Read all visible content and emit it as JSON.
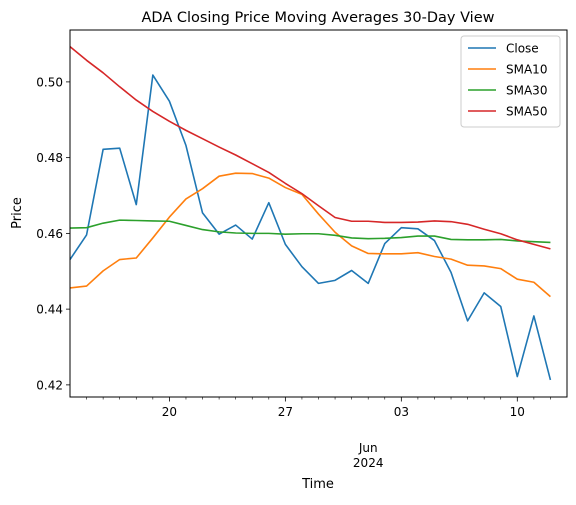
{
  "chart_data": {
    "type": "line",
    "title": "ADA Closing Price Moving Averages 30-Day View",
    "xlabel": "Time",
    "ylabel": "Price",
    "x_start": "2024-05-14",
    "x_end": "2024-06-13",
    "xlim": [
      "2024-05-14",
      "2024-06-13"
    ],
    "ylim": [
      0.4168,
      0.5137
    ],
    "y_ticks": [
      0.42,
      0.44,
      0.46,
      0.48,
      0.5
    ],
    "y_tick_labels": [
      "0.42",
      "0.44",
      "0.46",
      "0.48",
      "0.50"
    ],
    "x_major_ticks": [
      {
        "date": "2024-05-20",
        "label": "20"
      },
      {
        "date": "2024-05-27",
        "label": "27"
      },
      {
        "date": "2024-06-03",
        "label": "03"
      },
      {
        "date": "2024-06-10",
        "label": "10"
      }
    ],
    "x_month_label": {
      "date": "2024-06-01",
      "month": "Jun",
      "year": "2024"
    },
    "legend": "top-right",
    "grid": false,
    "series": [
      {
        "name": "Close",
        "color": "#1f77b4",
        "values": [
          0.4531,
          0.4596,
          0.4822,
          0.4825,
          0.4676,
          0.5018,
          0.4949,
          0.4832,
          0.4654,
          0.4598,
          0.4622,
          0.4585,
          0.4681,
          0.4571,
          0.4512,
          0.4468,
          0.4476,
          0.4502,
          0.4468,
          0.4573,
          0.4615,
          0.4612,
          0.4581,
          0.4497,
          0.4369,
          0.4443,
          0.4407,
          0.4222,
          0.4382,
          0.4213
        ]
      },
      {
        "name": "SMA10",
        "color": "#ff7f0e",
        "values": [
          0.4456,
          0.4461,
          0.4501,
          0.4531,
          0.4535,
          0.4588,
          0.4643,
          0.4691,
          0.4718,
          0.4751,
          0.4759,
          0.4758,
          0.4746,
          0.4721,
          0.4703,
          0.4651,
          0.4603,
          0.4567,
          0.4547,
          0.4546,
          0.4546,
          0.4549,
          0.4539,
          0.4532,
          0.4516,
          0.4514,
          0.4507,
          0.4479,
          0.4471,
          0.4433
        ]
      },
      {
        "name": "SMA30",
        "color": "#2ca02c",
        "values": [
          0.4614,
          0.4615,
          0.4627,
          0.4635,
          0.4634,
          0.4633,
          0.4632,
          0.4621,
          0.461,
          0.4604,
          0.4601,
          0.46,
          0.46,
          0.4598,
          0.4599,
          0.4599,
          0.4595,
          0.4588,
          0.4586,
          0.4587,
          0.4589,
          0.4593,
          0.4593,
          0.4584,
          0.4583,
          0.4583,
          0.4584,
          0.458,
          0.4578,
          0.4576
        ]
      },
      {
        "name": "SMA50",
        "color": "#d62728",
        "values": [
          0.5093,
          0.5057,
          0.5024,
          0.4987,
          0.4952,
          0.4922,
          0.4896,
          0.4872,
          0.485,
          0.4828,
          0.4807,
          0.4784,
          0.4761,
          0.4732,
          0.4705,
          0.4673,
          0.4642,
          0.4632,
          0.4632,
          0.4629,
          0.4629,
          0.463,
          0.4633,
          0.4631,
          0.4624,
          0.4611,
          0.4599,
          0.4583,
          0.4571,
          0.4559
        ]
      }
    ]
  }
}
